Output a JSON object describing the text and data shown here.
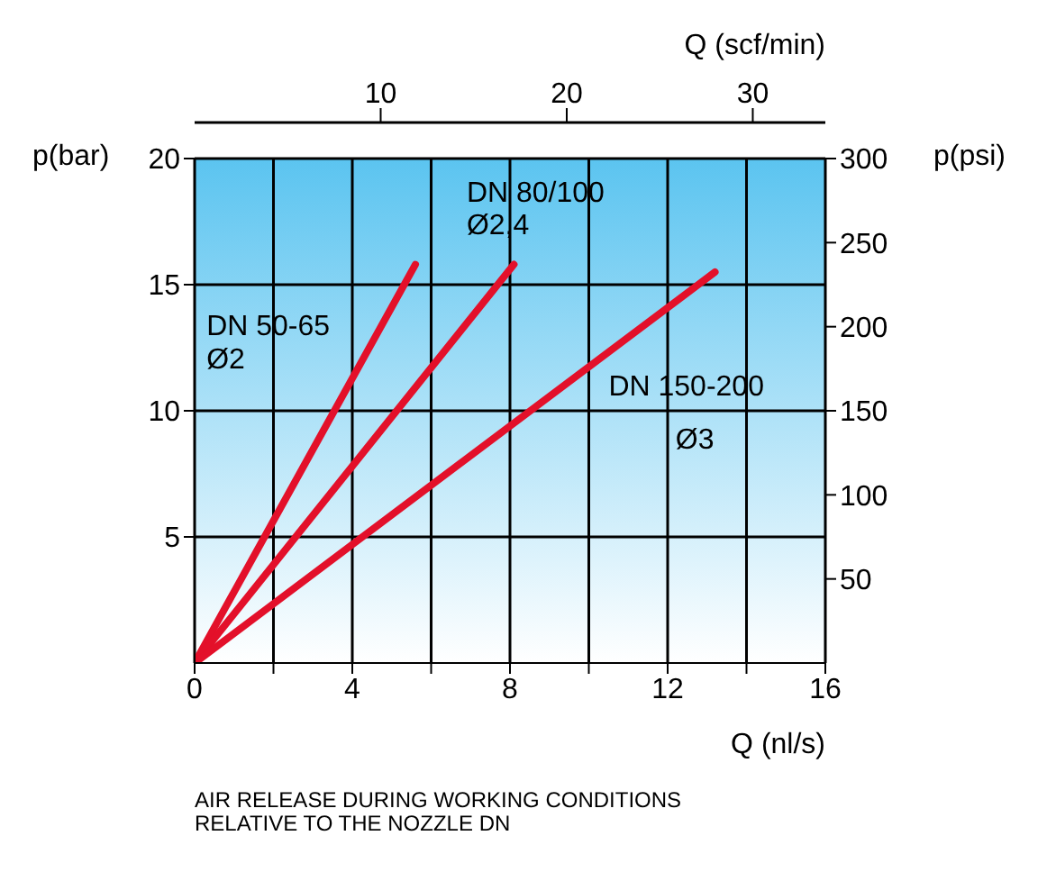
{
  "chart_data": {
    "type": "line",
    "title": "AIR RELEASE DURING WORKING CONDITIONS\nRELATIVE TO THE NOZZLE DN",
    "xlabel": "Q (nl/s)",
    "x2label": "Q (scf/min)",
    "ylabel": "p(bar)",
    "y2label": "p(psi)",
    "series": [
      {
        "x": [
          0,
          5.6
        ],
        "values": [
          0,
          15.8
        ],
        "color": "#e3102a"
      },
      {
        "x": [
          0,
          8.1
        ],
        "values": [
          0,
          15.8
        ],
        "color": "#e3102a"
      },
      {
        "x": [
          0,
          13.2
        ],
        "values": [
          0,
          15.5
        ],
        "color": "#e3102a"
      }
    ],
    "annotations": [
      "DN 50-65",
      "Ø2",
      "DN 80/100",
      "Ø2,4",
      "DN 150-200",
      "Ø3"
    ],
    "xlim": [
      0,
      16
    ],
    "xticks": [
      0,
      {
        "value": 2,
        "label": null
      },
      4,
      {
        "value": 6,
        "label": null
      },
      8,
      {
        "value": 10,
        "label": null
      },
      12,
      {
        "value": 14,
        "label": null
      },
      16
    ],
    "x2lim": [
      0,
      33.9
    ],
    "x2ticks": [
      10,
      20,
      30
    ],
    "ylim": [
      0,
      20
    ],
    "yticks": [
      5,
      10,
      15,
      20
    ],
    "y2lim": [
      0,
      300
    ],
    "y2ticks": [
      50,
      100,
      150,
      200,
      250,
      300
    ],
    "grid": true,
    "marker": "none",
    "line_style": "solid"
  }
}
